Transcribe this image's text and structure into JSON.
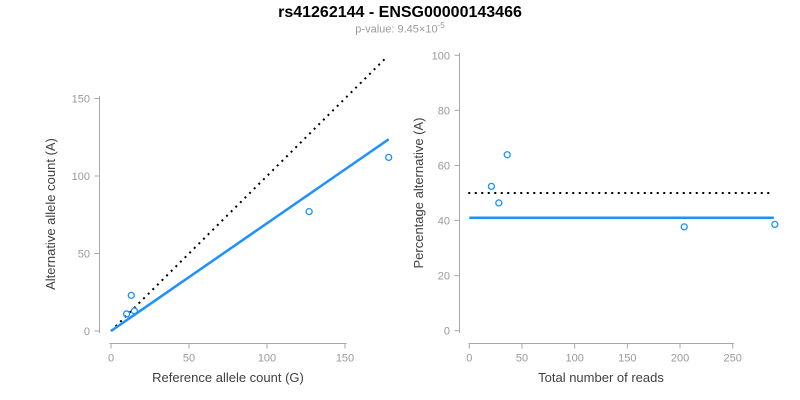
{
  "title": "rs41262144 - ENSG00000143466",
  "subtitle": {
    "label": "p-value: 9.45×10",
    "exponent": "-5"
  },
  "colors": {
    "accent_blue": "#1E90FF",
    "dotted_black": "#000000",
    "axis_gray": "#A9A9A9",
    "tick_label_gray": "#999999",
    "axis_title_gray": "#404040",
    "title_black": "#000000",
    "subtitle_gray": "#9A9A9A",
    "background": "#FFFFFF"
  },
  "chart_data": [
    {
      "type": "scatter",
      "panel": "left",
      "xlabel": "Reference allele count (G)",
      "ylabel": "Alternative allele count (A)",
      "xticks": [
        0,
        50,
        100,
        150
      ],
      "yticks": [
        0,
        50,
        100,
        150
      ],
      "xlim": [
        0,
        180
      ],
      "ylim": [
        0,
        178
      ],
      "grid": false,
      "legend": "none",
      "points": [
        {
          "x": 10,
          "y": 11
        },
        {
          "x": 13,
          "y": 23
        },
        {
          "x": 15,
          "y": 13
        },
        {
          "x": 127,
          "y": 77
        },
        {
          "x": 178,
          "y": 112
        }
      ],
      "lines": [
        {
          "name": "identity-line",
          "style": "dotted",
          "color": "#000000",
          "x1": 0,
          "y1": 0,
          "x2": 177,
          "y2": 177
        },
        {
          "name": "fit-line",
          "style": "solid",
          "color": "#1E90FF",
          "x1": 0,
          "y1": 0,
          "x2": 178,
          "y2": 123.7
        }
      ]
    },
    {
      "type": "scatter",
      "panel": "right",
      "xlabel": "Total number of reads",
      "ylabel": "Percentage alternative (A)",
      "xticks": [
        0,
        50,
        100,
        150,
        200,
        250
      ],
      "yticks": [
        0,
        20,
        40,
        60,
        80,
        100
      ],
      "xlim": [
        0,
        292
      ],
      "ylim": [
        0,
        100
      ],
      "grid": false,
      "legend": "none",
      "points": [
        {
          "x": 21,
          "y": 52.4
        },
        {
          "x": 28,
          "y": 46.4
        },
        {
          "x": 36,
          "y": 63.9
        },
        {
          "x": 204,
          "y": 37.7
        },
        {
          "x": 290,
          "y": 38.6
        }
      ],
      "lines": [
        {
          "name": "expected-50pct-line",
          "style": "dotted",
          "color": "#000000",
          "x1": -1,
          "y1": 50,
          "x2": 285,
          "y2": 50
        },
        {
          "name": "fit-percentage-line",
          "style": "solid",
          "color": "#1E90FF",
          "x1": 0,
          "y1": 41,
          "x2": 289,
          "y2": 41
        }
      ]
    }
  ]
}
